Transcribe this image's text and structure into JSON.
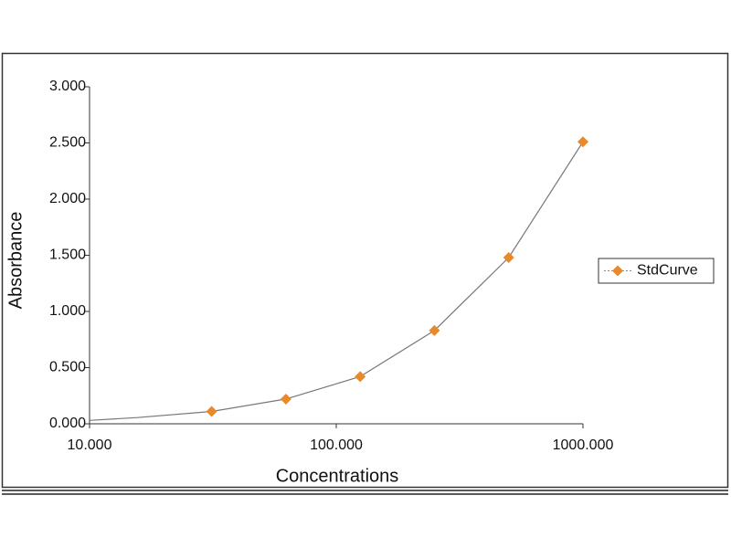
{
  "chart_data": {
    "type": "scatter",
    "x_label": "Concentrations",
    "y_label": "Absorbance",
    "x_scale": "log",
    "xlim": [
      10,
      1000
    ],
    "xticks": [
      {
        "value": 10,
        "label": "10.000"
      },
      {
        "value": 100,
        "label": "100.000"
      },
      {
        "value": 1000,
        "label": "1000.000"
      }
    ],
    "ylim": [
      0,
      3
    ],
    "yticks": [
      {
        "value": 0,
        "label": "0.000"
      },
      {
        "value": 0.5,
        "label": "0.500"
      },
      {
        "value": 1,
        "label": "1.000"
      },
      {
        "value": 1.5,
        "label": "1.500"
      },
      {
        "value": 2,
        "label": "2.000"
      },
      {
        "value": 2.5,
        "label": "2.500"
      },
      {
        "value": 3,
        "label": "3.000"
      }
    ],
    "legend": "right",
    "series": [
      {
        "name": "StdCurve",
        "color": "#e8892a",
        "x": [
          31.25,
          62.5,
          125,
          250,
          500,
          1000
        ],
        "values": [
          0.11,
          0.22,
          0.42,
          0.83,
          1.48,
          2.51
        ]
      }
    ],
    "fit": {
      "color": "#777777",
      "x": [
        10,
        15.625,
        31.25,
        62.5,
        125,
        250,
        500,
        1000
      ],
      "values": [
        0.03,
        0.055,
        0.11,
        0.22,
        0.42,
        0.83,
        1.48,
        2.51
      ]
    }
  }
}
